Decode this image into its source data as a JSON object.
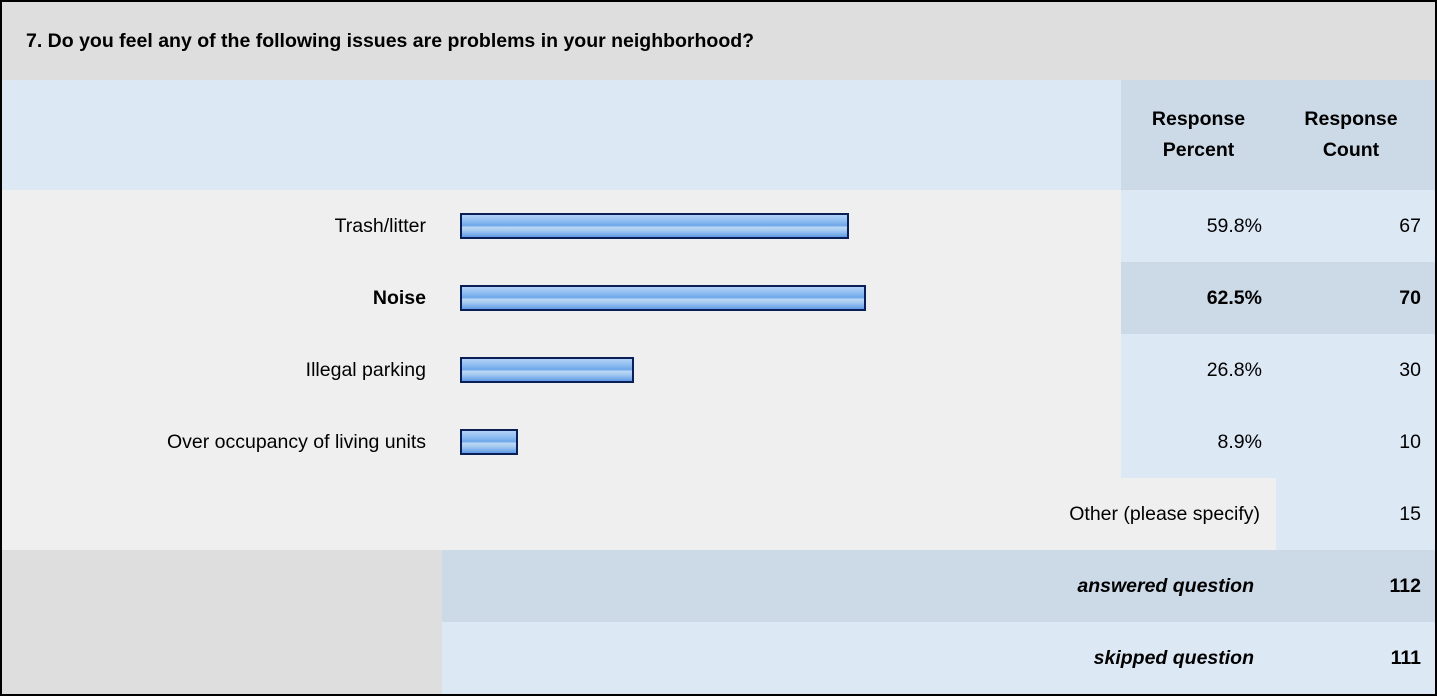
{
  "question": "7. Do you feel any of the following issues are problems in your neighborhood?",
  "header": {
    "percent_label_line1": "Response",
    "percent_label_line2": "Percent",
    "count_label_line1": "Response",
    "count_label_line2": "Count"
  },
  "chart_data": {
    "type": "bar",
    "orientation": "horizontal",
    "categories": [
      "Trash/litter",
      "Noise",
      "Illegal parking",
      "Over occupancy of living units"
    ],
    "values": [
      59.8,
      62.5,
      26.8,
      8.9
    ],
    "counts": [
      67,
      70,
      30,
      10
    ],
    "value_unit": "%",
    "highlighted_category": "Noise",
    "xlim": [
      0,
      100
    ]
  },
  "rows": [
    {
      "label": "Trash/litter",
      "percent": "59.8%",
      "count": "67"
    },
    {
      "label": "Noise",
      "percent": "62.5%",
      "count": "70"
    },
    {
      "label": "Illegal parking",
      "percent": "26.8%",
      "count": "30"
    },
    {
      "label": "Over occupancy of living units",
      "percent": "8.9%",
      "count": "10"
    }
  ],
  "other": {
    "label": "Other (please specify)",
    "count": "15"
  },
  "answered": {
    "label": "answered question",
    "count": "112"
  },
  "skipped": {
    "label": "skipped question",
    "count": "111"
  },
  "colors": {
    "bar_border": "#0a1f55",
    "bar_fill": "#8dbdf1",
    "header_bg": "#dde8f5",
    "highlight_bg": "#ccd9e7"
  }
}
